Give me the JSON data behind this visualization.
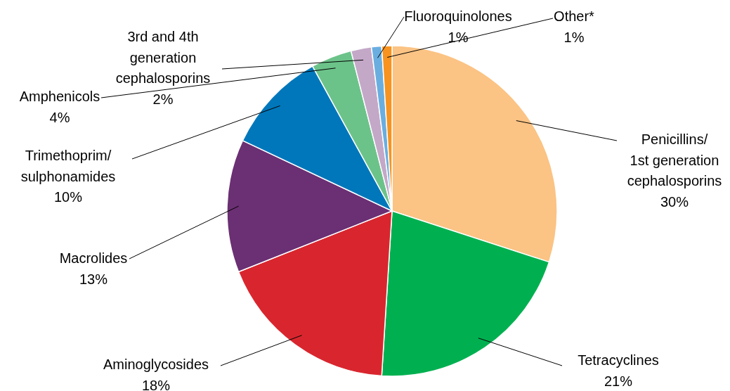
{
  "chart_data": {
    "type": "pie",
    "categories": [
      "Penicillins/ 1st generation cephalosporins",
      "Tetracyclines",
      "Aminoglycosides",
      "Macrolides",
      "Trimethoprim/ sulphonamides",
      "Amphenicols",
      "3rd and 4th generation cephalosporins",
      "Fluoroquinolones",
      "Other*"
    ],
    "values": [
      30,
      21,
      18,
      13,
      10,
      4,
      2,
      1,
      1
    ],
    "value_labels": [
      "30%",
      "21%",
      "18%",
      "13%",
      "10%",
      "4%",
      "2%",
      "1%",
      "1%"
    ],
    "colors": [
      "#fbc384",
      "#00b050",
      "#d9262e",
      "#6b2f73",
      "#0077bb",
      "#6cc38a",
      "#c4a8c8",
      "#6aaee0",
      "#f7931e"
    ]
  }
}
